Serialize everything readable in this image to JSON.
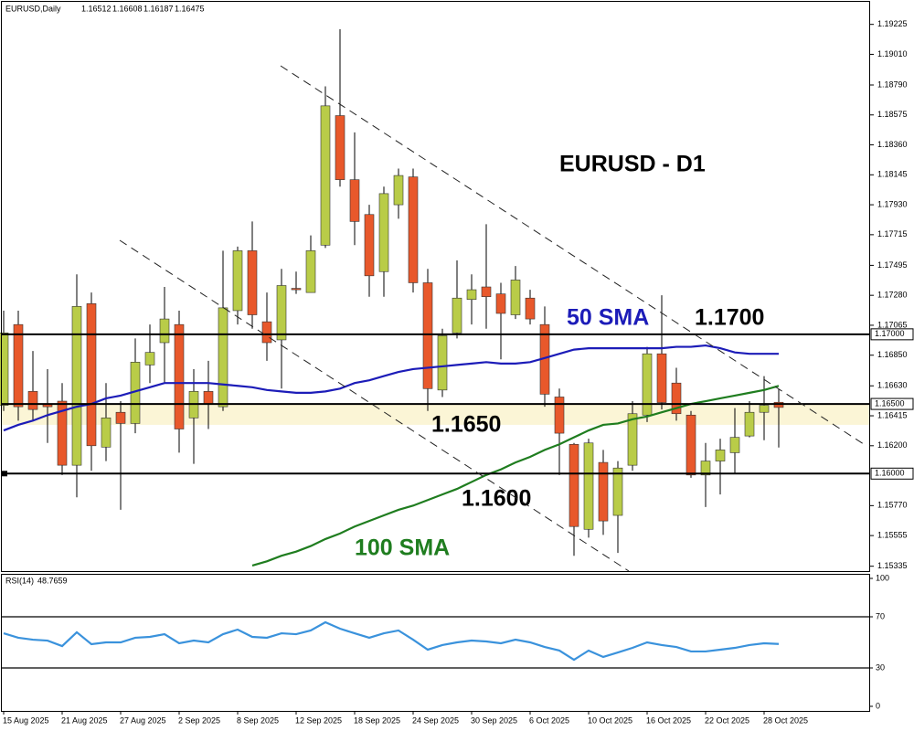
{
  "chart_data": {
    "type": "candlestick",
    "symbol": "EURUSD,Daily",
    "title": "EURUSD - D1",
    "categories": [
      "15 Aug 2025",
      null,
      null,
      null,
      "21 Aug 2025",
      null,
      null,
      null,
      "27 Aug 2025",
      null,
      null,
      null,
      "2 Sep 2025",
      null,
      null,
      null,
      "8 Sep 2025",
      null,
      null,
      null,
      "12 Sep 2025",
      null,
      null,
      null,
      "18 Sep 2025",
      null,
      null,
      null,
      "24 Sep 2025",
      null,
      null,
      null,
      "30 Sep 2025",
      null,
      null,
      null,
      "6 Oct 2025",
      null,
      null,
      null,
      "10 Oct 2025",
      null,
      null,
      null,
      "16 Oct 2025",
      null,
      null,
      null,
      "22 Oct 2025",
      null,
      null,
      null,
      "28 Oct 2025",
      null
    ],
    "open": [
      1.1649,
      1.1707,
      1.1659,
      1.165,
      1.1652,
      1.1606,
      1.1722,
      1.1619,
      1.1644,
      1.1636,
      1.1678,
      1.1694,
      1.1707,
      1.164,
      1.1659,
      1.1648,
      1.1717,
      1.176,
      1.1709,
      1.1696,
      1.1733,
      1.173,
      1.1764,
      1.1857,
      1.1811,
      1.1786,
      1.1745,
      1.1793,
      1.1813,
      1.1737,
      1.166,
      1.1701,
      1.1725,
      1.1734,
      1.1729,
      1.1714,
      1.1726,
      1.1707,
      1.1655,
      1.1621,
      1.156,
      1.1608,
      1.157,
      1.1606,
      1.1642,
      1.1686,
      1.1665,
      1.1642,
      1.1599,
      1.1609,
      1.1615,
      1.1627,
      1.1644,
      1.16512
    ],
    "high": [
      1.1717,
      1.1717,
      1.1688,
      1.1675,
      1.1665,
      1.1743,
      1.173,
      1.1665,
      1.1652,
      1.1697,
      1.1707,
      1.1734,
      1.1717,
      1.1675,
      1.1681,
      1.176,
      1.1763,
      1.1781,
      1.173,
      1.1747,
      1.1745,
      1.1771,
      1.1878,
      1.1919,
      1.1845,
      1.1793,
      1.1806,
      1.1819,
      1.1819,
      1.1747,
      1.1704,
      1.1753,
      1.1743,
      1.1779,
      1.1737,
      1.1749,
      1.1732,
      1.172,
      1.1661,
      1.1622,
      1.1625,
      1.1617,
      1.1609,
      1.1652,
      1.1691,
      1.1728,
      1.1676,
      1.1645,
      1.1622,
      1.1625,
      1.1647,
      1.1652,
      1.167,
      1.16608
    ],
    "low": [
      1.1645,
      1.1638,
      1.1638,
      1.1622,
      1.1599,
      1.1583,
      1.1602,
      1.1609,
      1.1574,
      1.1629,
      1.1665,
      1.1665,
      1.1615,
      1.1607,
      1.1632,
      1.1645,
      1.1707,
      1.1704,
      1.1681,
      1.1661,
      1.1729,
      1.173,
      1.1762,
      1.1806,
      1.1764,
      1.1727,
      1.1727,
      1.1783,
      1.173,
      1.1645,
      1.1655,
      1.1697,
      1.1707,
      1.1704,
      1.1682,
      1.1711,
      1.1707,
      1.1648,
      1.1599,
      1.1541,
      1.1554,
      1.1556,
      1.1543,
      1.1602,
      1.1637,
      1.1646,
      1.1638,
      1.1597,
      1.1576,
      1.1585,
      1.16,
      1.1626,
      1.1624,
      1.16187
    ],
    "close": [
      1.1701,
      1.1648,
      1.1646,
      1.1648,
      1.1606,
      1.172,
      1.162,
      1.164,
      1.1636,
      1.168,
      1.1687,
      1.1711,
      1.1632,
      1.1659,
      1.165,
      1.1719,
      1.176,
      1.1714,
      1.1694,
      1.1735,
      1.1732,
      1.176,
      1.1864,
      1.1811,
      1.1781,
      1.1742,
      1.1801,
      1.1814,
      1.1737,
      1.1661,
      1.1699,
      1.1726,
      1.1732,
      1.1727,
      1.1715,
      1.1739,
      1.1711,
      1.1657,
      1.1629,
      1.1562,
      1.1622,
      1.1566,
      1.1604,
      1.1643,
      1.1686,
      1.1651,
      1.1643,
      1.1599,
      1.1609,
      1.1617,
      1.1626,
      1.1644,
      1.1649,
      1.16475
    ],
    "up_color": "#b9cc48",
    "down_color": "#e8582b",
    "moving_averages": [
      {
        "name": "50 SMA",
        "color": "#1c1cb8",
        "values": [
          1.1631,
          1.1635,
          1.1638,
          1.1642,
          1.1645,
          1.1648,
          1.165,
          1.1654,
          1.1656,
          1.1659,
          1.1662,
          1.1665,
          1.1665,
          1.1665,
          1.1665,
          1.1664,
          1.1663,
          1.1662,
          1.166,
          1.1659,
          1.1658,
          1.1658,
          1.1659,
          1.1661,
          1.1665,
          1.1667,
          1.167,
          1.1673,
          1.1675,
          1.1676,
          1.1677,
          1.1678,
          1.1679,
          1.168,
          1.1679,
          1.1679,
          1.168,
          1.1683,
          1.1686,
          1.1689,
          1.169,
          1.169,
          1.169,
          1.169,
          1.169,
          1.169,
          1.1691,
          1.1691,
          1.1692,
          1.169,
          1.1687,
          1.1686,
          1.1686,
          1.1686
        ]
      },
      {
        "name": "100 SMA",
        "color": "#1f7d1f",
        "values": [
          null,
          null,
          null,
          null,
          null,
          null,
          null,
          null,
          null,
          null,
          null,
          null,
          null,
          null,
          null,
          null,
          null,
          1.1534,
          1.1537,
          1.1541,
          1.1544,
          1.1548,
          1.1553,
          1.1557,
          1.1562,
          1.1566,
          1.157,
          1.1574,
          1.1577,
          1.1581,
          1.1585,
          1.1589,
          1.1594,
          1.1599,
          1.1603,
          1.1608,
          1.1612,
          1.1617,
          1.1621,
          1.1626,
          1.1631,
          1.1635,
          1.1636,
          1.1639,
          1.1641,
          1.1644,
          1.1647,
          1.165,
          1.1652,
          1.1654,
          1.1656,
          1.1658,
          1.166,
          1.1663
        ]
      }
    ],
    "levels": [
      {
        "value": 1.17,
        "label": "1.17000",
        "annotation": "1.1700"
      },
      {
        "value": 1.165,
        "label": "1.16500",
        "annotation": "1.1650"
      },
      {
        "value": 1.16,
        "label": "1.16000",
        "annotation": "1.1600"
      }
    ],
    "zone": [
      1.1635,
      1.165
    ],
    "ylim": [
      1.153,
      1.194
    ],
    "yticks": [
      1.19225,
      {
        "value": 1.1901,
        "label": "1.19010"
      },
      {
        "value": 1.1879,
        "label": "1.18790"
      },
      1.18575,
      {
        "value": 1.1836,
        "label": "1.18360"
      },
      1.18145,
      {
        "value": 1.1793,
        "label": "1.17930"
      },
      1.17715,
      1.17495,
      {
        "value": 1.1728,
        "label": "1.17280"
      },
      1.17065,
      {
        "value": 1.1685,
        "label": "1.16850"
      },
      {
        "value": 1.1663,
        "label": "1.16630"
      },
      1.16415,
      {
        "value": 1.162,
        "label": "1.16200"
      },
      {
        "value": 1.1577,
        "label": "1.15770"
      },
      1.15555,
      1.15335
    ],
    "rsi": {
      "title": "RSI(14)",
      "color": "#3a92dc",
      "values": [
        57.1,
        53.6,
        52.1,
        51.4,
        47.1,
        57.9,
        48.6,
        50.0,
        50.0,
        53.6,
        54.3,
        56.4,
        49.3,
        51.4,
        50.0,
        56.4,
        60.0,
        54.3,
        53.6,
        57.1,
        56.4,
        59.3,
        65.7,
        60.7,
        57.1,
        53.6,
        57.1,
        59.3,
        52.1,
        44.3,
        47.9,
        50.0,
        51.4,
        50.7,
        49.3,
        52.1,
        50.0,
        46.4,
        43.6,
        36.4,
        43.6,
        38.6,
        42.1,
        45.7,
        50.0,
        47.9,
        46.4,
        42.9,
        42.9,
        44.3,
        45.7,
        47.9,
        49.3,
        48.7659
      ],
      "ylim": [
        0,
        100
      ],
      "yticks": [
        100,
        70,
        30,
        0
      ],
      "levels": [
        70,
        30
      ]
    }
  }
}
